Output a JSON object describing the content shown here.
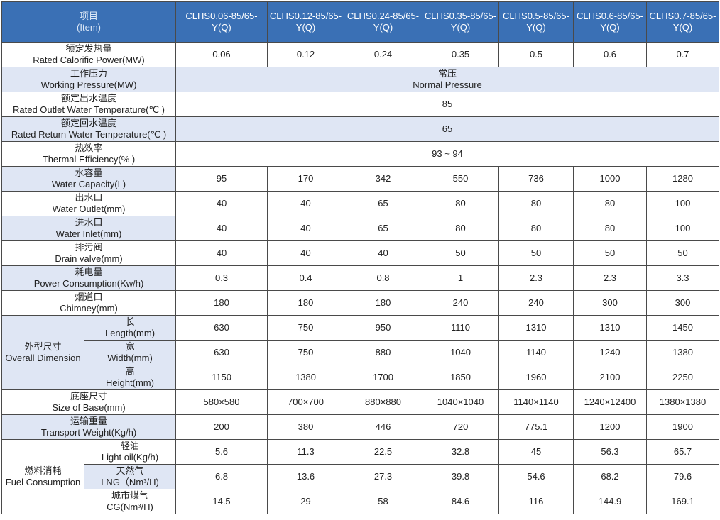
{
  "header": {
    "item_zh": "项目",
    "item_en": "(Item)",
    "models": [
      "CLHS0.06-85/65-Y(Q)",
      "CLHS0.12-85/65-Y(Q)",
      "CLHS0.24-85/65-Y(Q)",
      "CLHS0.35-85/65-Y(Q)",
      "CLHS0.5-85/65-Y(Q)",
      "CLHS0.6-85/65-Y(Q)",
      "CLHS0.7-85/65-Y(Q)"
    ]
  },
  "rows": {
    "power": {
      "zh": "额定发热量",
      "en": "Rated Calorific Power(MW)",
      "values": [
        "0.06",
        "0.12",
        "0.24",
        "0.35",
        "0.5",
        "0.6",
        "0.7"
      ]
    },
    "pressure": {
      "zh": "工作压力",
      "en": "Working Pressure(MW)",
      "span_zh": "常压",
      "span_en": "Normal Pressure"
    },
    "outlet_temp": {
      "zh": "额定出水温度",
      "en": "Rated Outlet Water Temperature(℃ )",
      "span": "85"
    },
    "return_temp": {
      "zh": "额定回水温度",
      "en": "Rated Return Water Temperature(℃ )",
      "span": "65"
    },
    "efficiency": {
      "zh": "热效率",
      "en": "Thermal Efficiency(% )",
      "span": "93 ~ 94"
    },
    "capacity": {
      "zh": "水容量",
      "en": "Water Capacity(L)",
      "values": [
        "95",
        "170",
        "342",
        "550",
        "736",
        "1000",
        "1280"
      ]
    },
    "outlet": {
      "zh": "出水口",
      "en": "Water Outlet(mm)",
      "values": [
        "40",
        "40",
        "65",
        "80",
        "80",
        "80",
        "100"
      ]
    },
    "inlet": {
      "zh": "进水口",
      "en": "Water Inlet(mm)",
      "values": [
        "40",
        "40",
        "65",
        "80",
        "80",
        "80",
        "100"
      ]
    },
    "drain": {
      "zh": "排污阀",
      "en": "Drain valve(mm)",
      "values": [
        "40",
        "40",
        "40",
        "50",
        "50",
        "50",
        "50"
      ]
    },
    "consumption": {
      "zh": "耗电量",
      "en": "Power Consumption(Kw/h)",
      "values": [
        "0.3",
        "0.4",
        "0.8",
        "1",
        "2.3",
        "2.3",
        "3.3"
      ]
    },
    "chimney": {
      "zh": "烟道口",
      "en": "Chimney(mm)",
      "values": [
        "180",
        "180",
        "180",
        "240",
        "240",
        "300",
        "300"
      ]
    },
    "dimension": {
      "zh": "外型尺寸",
      "en": "Overall Dimension",
      "length": {
        "zh": "长",
        "en": "Length(mm)",
        "values": [
          "630",
          "750",
          "950",
          "1110",
          "1310",
          "1310",
          "1450"
        ]
      },
      "width": {
        "zh": "宽",
        "en": "Width(mm)",
        "values": [
          "630",
          "750",
          "880",
          "1040",
          "1140",
          "1240",
          "1380"
        ]
      },
      "height": {
        "zh": "高",
        "en": "Height(mm)",
        "values": [
          "1150",
          "1380",
          "1700",
          "1850",
          "1960",
          "2100",
          "2250"
        ]
      }
    },
    "base": {
      "zh": "底座尺寸",
      "en": "Size of Base(mm)",
      "values": [
        "580×580",
        "700×700",
        "880×880",
        "1040×1040",
        "1140×1140",
        "1240×12400",
        "1380×1380"
      ]
    },
    "weight": {
      "zh": "运输重量",
      "en": "Transport Weight(Kg/h)",
      "values": [
        "200",
        "380",
        "446",
        "720",
        "775.1",
        "1200",
        "1900"
      ]
    },
    "fuel": {
      "zh": "燃料消耗",
      "en": "Fuel Consumption",
      "oil": {
        "zh": "轻油",
        "en": "Light oil(Kg/h)",
        "values": [
          "5.6",
          "11.3",
          "22.5",
          "32.8",
          "45",
          "56.3",
          "65.7"
        ]
      },
      "lng": {
        "zh": "天然气",
        "en": "LNG（Nm³/H)",
        "values": [
          "6.8",
          "13.6",
          "27.3",
          "39.8",
          "54.6",
          "68.2",
          "79.6"
        ]
      },
      "cg": {
        "zh": "城市煤气",
        "en": "CG(Nm³/H)",
        "values": [
          "14.5",
          "29",
          "58",
          "84.6",
          "116",
          "144.9",
          "169.1"
        ]
      }
    }
  }
}
